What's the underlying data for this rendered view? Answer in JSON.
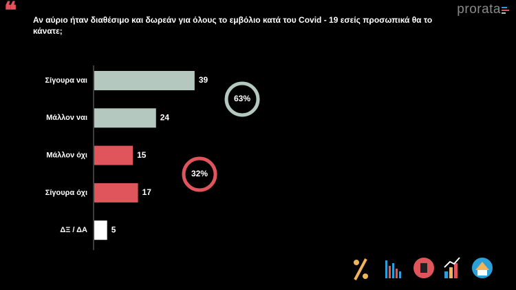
{
  "chart_data": {
    "type": "hbar",
    "title": "Αν αύριο ήταν διαθέσιμο και δωρεάν για όλους το εμβόλιο κατά του Covid - 19 εσείς προσωπικά θα το κάνατε;",
    "categories": [
      "Σίγουρα ναι",
      "Μάλλον ναι",
      "Μάλλον όχι",
      "Σίγουρα όχι",
      "ΔΞ / ΔΑ"
    ],
    "values": [
      39,
      24,
      15,
      17,
      5
    ],
    "colors": [
      "#b4c8bf",
      "#b4c8bf",
      "#e0545c",
      "#e0545c",
      "#ffffff"
    ],
    "annotations": [
      {
        "text": "63%",
        "color": "#b4c8bf"
      },
      {
        "text": "32%",
        "color": "#e0545c"
      }
    ]
  },
  "brand": "prorata"
}
